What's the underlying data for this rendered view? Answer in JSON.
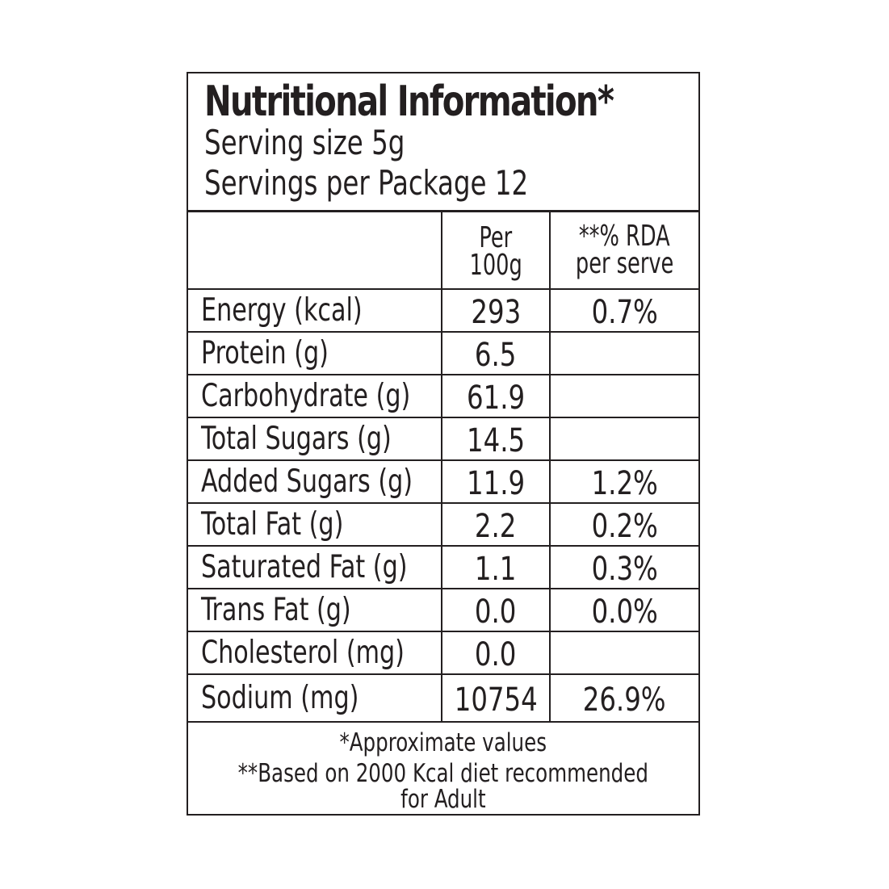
{
  "header": {
    "title": "Nutritional Information*",
    "serving_size": "Serving size 5g",
    "servings_per_package": "Servings per Package 12"
  },
  "columns": {
    "per_100g_line1": "Per",
    "per_100g_line2": "100g",
    "rda_line1": "**% RDA",
    "rda_line2": "per serve"
  },
  "rows": [
    {
      "nutrient": "Energy (kcal)",
      "per_100g": "293",
      "rda": "0.7%"
    },
    {
      "nutrient": "Protein (g)",
      "per_100g": "6.5",
      "rda": ""
    },
    {
      "nutrient": "Carbohydrate (g)",
      "per_100g": "61.9",
      "rda": ""
    },
    {
      "nutrient": "Total Sugars (g)",
      "per_100g": "14.5",
      "rda": ""
    },
    {
      "nutrient": "Added Sugars (g)",
      "per_100g": "11.9",
      "rda": "1.2%"
    },
    {
      "nutrient": "Total Fat (g)",
      "per_100g": "2.2",
      "rda": "0.2%"
    },
    {
      "nutrient": "Saturated Fat (g)",
      "per_100g": "1.1",
      "rda": "0.3%"
    },
    {
      "nutrient": "Trans Fat (g)",
      "per_100g": "0.0",
      "rda": "0.0%"
    },
    {
      "nutrient": "Cholesterol (mg)",
      "per_100g": "0.0",
      "rda": ""
    },
    {
      "nutrient": "Sodium (mg)",
      "per_100g": "10754",
      "rda": "26.9%"
    }
  ],
  "footer": {
    "note1": "*Approximate values",
    "note2": "**Based on 2000 Kcal diet recommended",
    "note3": "for Adult"
  }
}
